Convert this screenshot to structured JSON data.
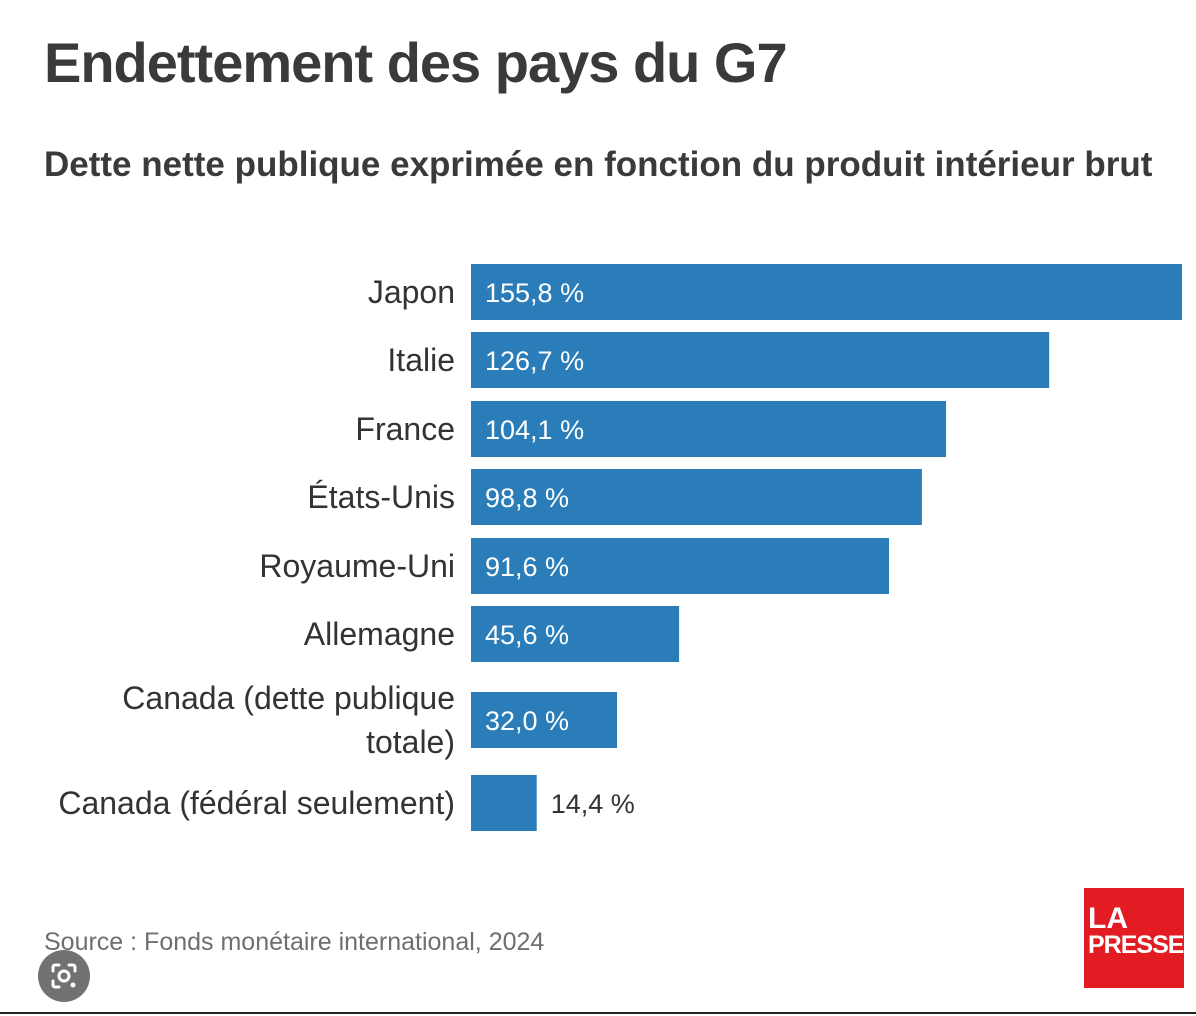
{
  "header": {
    "title": "Endettement des pays du G7",
    "subtitle": "Dette nette publique exprimée en fonction du produit intérieur brut"
  },
  "chart_data": {
    "type": "bar",
    "orientation": "horizontal",
    "title": "Endettement des pays du G7",
    "subtitle": "Dette nette publique exprimée en fonction du produit intérieur brut",
    "categories": [
      [
        "Japon"
      ],
      [
        "Italie"
      ],
      [
        "France"
      ],
      [
        "États-Unis"
      ],
      [
        "Royaume-Uni"
      ],
      [
        "Allemagne"
      ],
      [
        "Canada (dette publique",
        "totale)"
      ],
      [
        "Canada (fédéral seulement)"
      ]
    ],
    "values": [
      155.8,
      126.7,
      104.1,
      98.8,
      91.6,
      45.6,
      32.0,
      14.4
    ],
    "value_labels": [
      "155,8 %",
      "126,7 %",
      "104,1 %",
      "98,8 %",
      "91,6 %",
      "45,6 %",
      "32,0 %",
      "14,4 %"
    ],
    "xlim": [
      0,
      155.8
    ],
    "grid": false,
    "legend": false,
    "bar_color": "#2a7db8"
  },
  "footer": {
    "source": "Source : Fonds monétaire international, 2024"
  },
  "logo": {
    "line1": "LA",
    "line2": "PRESSE",
    "color": "#e31b23"
  },
  "icons": {
    "lens": "lens-search-icon"
  }
}
